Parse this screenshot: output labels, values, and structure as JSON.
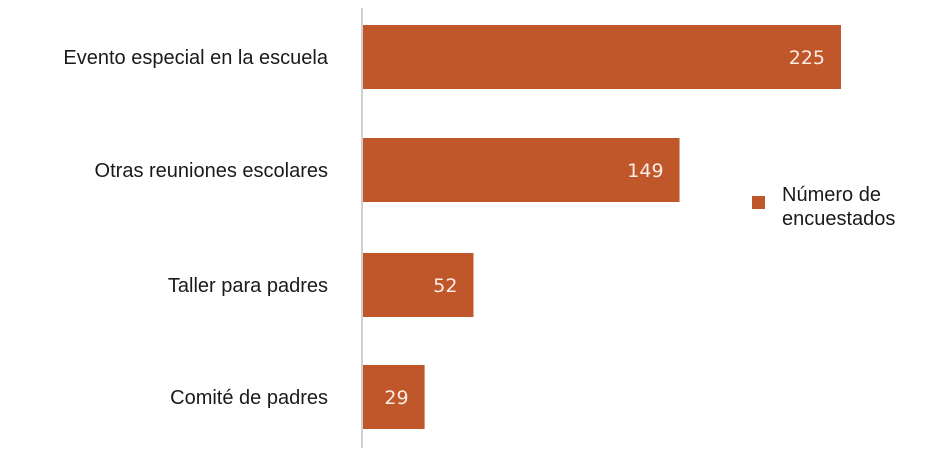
{
  "chart_data": {
    "type": "bar",
    "orientation": "horizontal",
    "categories": [
      "Evento especial en la escuela",
      "Otras reuniones escolares",
      "Taller para padres",
      "Comité de padres"
    ],
    "series": [
      {
        "name": "Número de encuestados",
        "values": [
          225,
          149,
          52,
          29
        ]
      }
    ],
    "data_labels": [
      "225",
      "149",
      "52",
      "29"
    ],
    "xlim": [
      0,
      225
    ],
    "grid": false,
    "legend_position": "right",
    "colors": {
      "bar": "#C0572A",
      "data_label": "#FBEDE4",
      "axis": "#BFBFBF",
      "text": "#1A1A1A"
    }
  },
  "legend": {
    "label": "Número de encuestados"
  }
}
